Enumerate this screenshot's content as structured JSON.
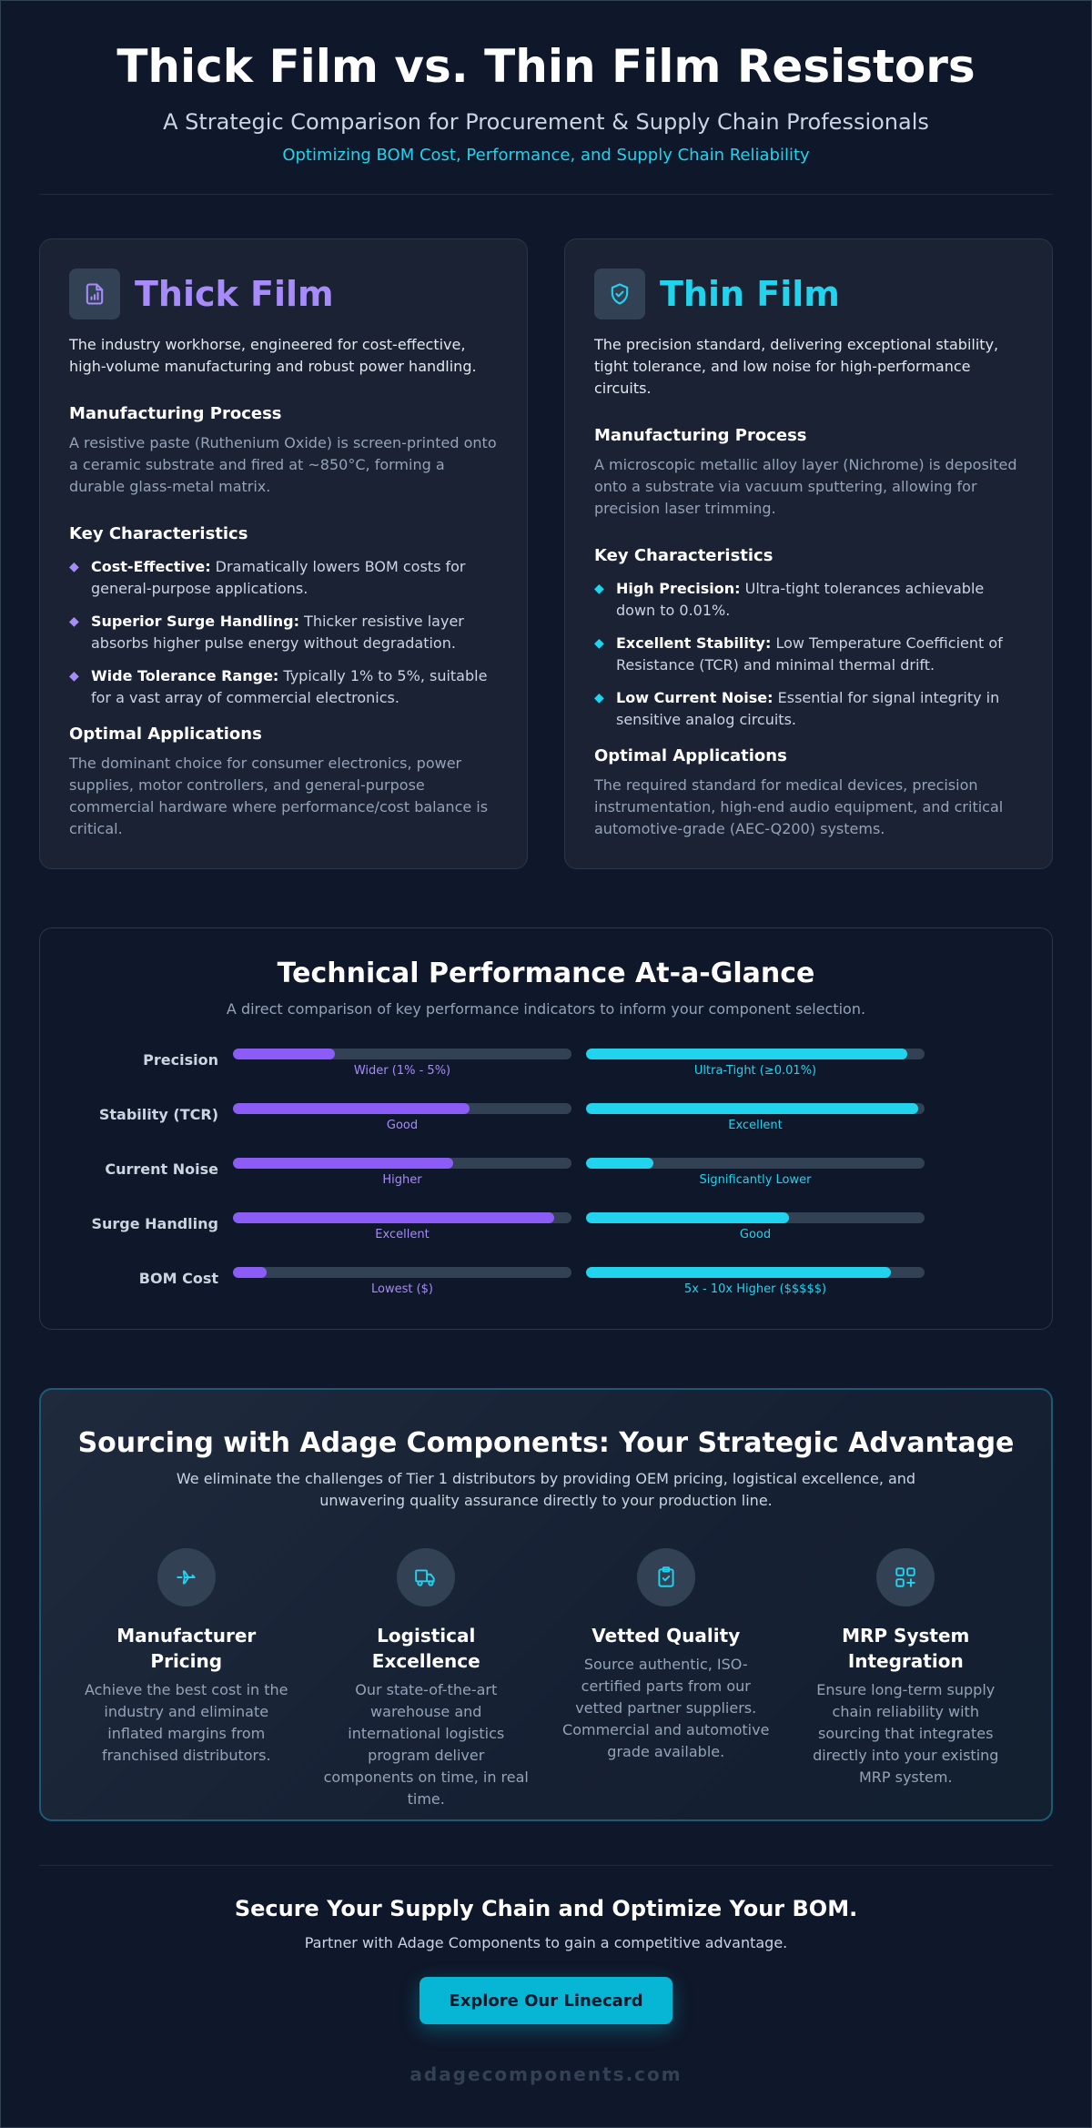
{
  "header": {
    "title": "Thick Film vs. Thin Film Resistors",
    "subtitle": "A Strategic Comparison for Procurement & Supply Chain Professionals",
    "tagline": "Optimizing BOM Cost, Performance, and Supply Chain Reliability"
  },
  "colors": {
    "thick": "#a78bfa",
    "thin": "#22d3ee",
    "background": "#0f172a"
  },
  "thick": {
    "icon": "document-chart-icon",
    "title": "Thick Film",
    "description": "The industry workhorse, engineered for cost-effective, high-volume manufacturing and robust power handling.",
    "process_title": "Manufacturing Process",
    "process_text": "A resistive paste (Ruthenium Oxide) is screen-printed onto a ceramic substrate and fired at ~850°C, forming a durable glass-metal matrix.",
    "characteristics_title": "Key Characteristics",
    "characteristics": [
      {
        "label": "Cost-Effective:",
        "text": " Dramatically lowers BOM costs for general-purpose applications."
      },
      {
        "label": "Superior Surge Handling:",
        "text": " Thicker resistive layer absorbs higher pulse energy without degradation."
      },
      {
        "label": "Wide Tolerance Range:",
        "text": " Typically 1% to 5%, suitable for a vast array of commercial electronics."
      }
    ],
    "applications_title": "Optimal Applications",
    "applications_text": "The dominant choice for consumer electronics, power supplies, motor controllers, and general-purpose commercial hardware where performance/cost balance is critical."
  },
  "thin": {
    "icon": "shield-check-icon",
    "title": "Thin Film",
    "description": "The precision standard, delivering exceptional stability, tight tolerance, and low noise for high-performance circuits.",
    "process_title": "Manufacturing Process",
    "process_text": "A microscopic metallic alloy layer (Nichrome) is deposited onto a substrate via vacuum sputtering, allowing for precision laser trimming.",
    "characteristics_title": "Key Characteristics",
    "characteristics": [
      {
        "label": "High Precision:",
        "text": " Ultra-tight tolerances achievable down to 0.01%."
      },
      {
        "label": "Excellent Stability:",
        "text": " Low Temperature Coefficient of Resistance (TCR) and minimal thermal drift."
      },
      {
        "label": "Low Current Noise:",
        "text": " Essential for signal integrity in sensitive analog circuits."
      }
    ],
    "applications_title": "Optimal Applications",
    "applications_text": "The required standard for medical devices, precision instrumentation, high-end audio equipment, and critical automotive-grade (AEC-Q200) systems."
  },
  "performance": {
    "title": "Technical Performance At-a-Glance",
    "subtitle": "A direct comparison of key performance indicators to inform your component selection.",
    "rows": [
      {
        "label": "Precision",
        "thick_level": 0.3,
        "thick_caption": "Wider (1% - 5%)",
        "thin_level": 0.95,
        "thin_caption": "Ultra-Tight (≥0.01%)"
      },
      {
        "label": "Stability (TCR)",
        "thick_level": 0.7,
        "thick_caption": "Good",
        "thin_level": 0.98,
        "thin_caption": "Excellent"
      },
      {
        "label": "Current Noise",
        "thick_level": 0.65,
        "thick_caption": "Higher",
        "thin_level": 0.2,
        "thin_caption": "Significantly Lower"
      },
      {
        "label": "Surge Handling",
        "thick_level": 0.95,
        "thick_caption": "Excellent",
        "thin_level": 0.6,
        "thin_caption": "Good"
      },
      {
        "label": "BOM Cost",
        "thick_level": 0.1,
        "thick_caption": "Lowest ($)",
        "thin_level": 0.9,
        "thin_caption": "5x - 10x Higher ($$$$$)"
      }
    ]
  },
  "sourcing": {
    "title": "Sourcing with Adage Components: Your Strategic Advantage",
    "subtitle": "We eliminate the challenges of Tier 1 distributors by providing OEM pricing, logistical excellence, and unwavering quality assurance directly to your production line.",
    "features": [
      {
        "icon": "plane-icon",
        "title": "Manufacturer Pricing",
        "text": "Achieve the best cost in the industry and eliminate inflated margins from franchised distributors."
      },
      {
        "icon": "truck-icon",
        "title": "Logistical Excellence",
        "text": "Our state-of-the-art warehouse and international logistics program deliver components on time, in real time."
      },
      {
        "icon": "clipboard-check-icon",
        "title": "Vetted Quality",
        "text": "Source authentic, ISO-certified parts from our vetted partner suppliers. Commercial and automotive grade available."
      },
      {
        "icon": "grid-plus-icon",
        "title": "MRP System Integration",
        "text": "Ensure long-term supply chain reliability with sourcing that integrates directly into your existing MRP system."
      }
    ]
  },
  "cta": {
    "title": "Secure Your Supply Chain and Optimize Your BOM.",
    "subtitle": "Partner with Adage Components to gain a competitive advantage.",
    "button_label": "Explore Our Linecard"
  },
  "footer": {
    "site": "adagecomponents.com"
  }
}
